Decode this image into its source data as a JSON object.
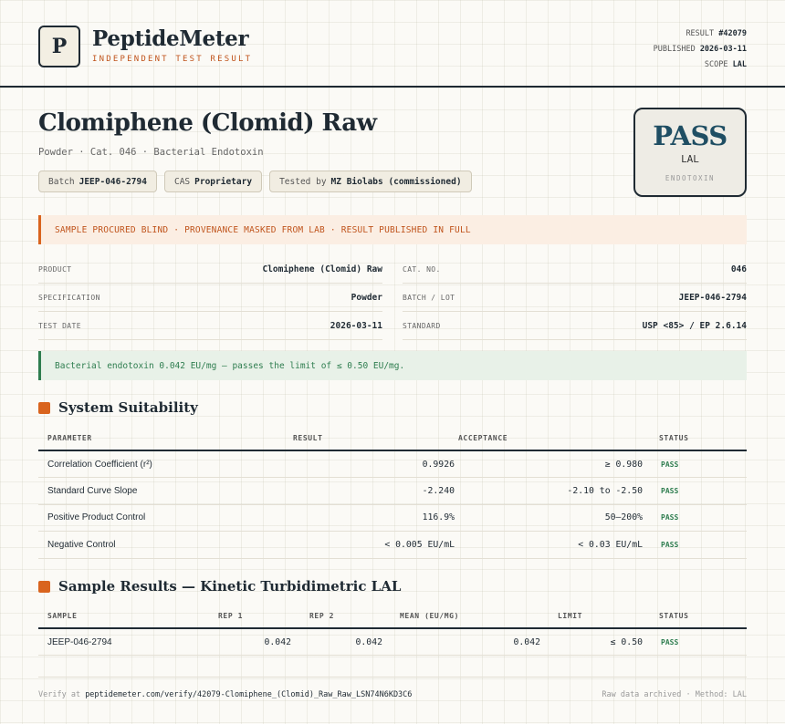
{
  "header": {
    "logo_letter": "P",
    "brand": "PeptideMeter",
    "tagline": "INDEPENDENT TEST RESULT",
    "meta": [
      {
        "label": "RESULT",
        "value": "#42079"
      },
      {
        "label": "PUBLISHED",
        "value": "2026-03-11"
      },
      {
        "label": "SCOPE",
        "value": "LAL"
      }
    ]
  },
  "product": {
    "title": "Clomiphene (Clomid) Raw",
    "subtitle": "Powder · Cat. 046 · Bacterial Endotoxin",
    "chips": [
      {
        "label": "Batch",
        "value": "JEEP-046-2794"
      },
      {
        "label": "CAS",
        "value": "Proprietary"
      },
      {
        "label": "Tested by",
        "value": "MZ Biolabs (commissioned)"
      }
    ]
  },
  "verdict": {
    "word": "PASS",
    "method": "LAL",
    "category": "ENDOTOXIN"
  },
  "banner_warn": "SAMPLE PROCURED BLIND · PROVENANCE MASKED FROM LAB · RESULT PUBLISHED IN FULL",
  "info": [
    [
      {
        "label": "PRODUCT",
        "value": "Clomiphene (Clomid) Raw"
      },
      {
        "label": "CAT. NO.",
        "value": "046"
      }
    ],
    [
      {
        "label": "SPECIFICATION",
        "value": "Powder"
      },
      {
        "label": "BATCH / LOT",
        "value": "JEEP-046-2794"
      }
    ],
    [
      {
        "label": "TEST DATE",
        "value": "2026-03-11"
      },
      {
        "label": "STANDARD",
        "value": "USP <85> / EP 2.6.14"
      }
    ]
  ],
  "banner_ok": "Bacterial endotoxin 0.042 EU/mg — passes the limit of ≤ 0.50 EU/mg.",
  "suitability": {
    "title": "System Suitability",
    "headers": [
      "PARAMETER",
      "RESULT",
      "ACCEPTANCE",
      "STATUS"
    ],
    "rows": [
      {
        "param": "Correlation Coefficient (r²)",
        "result": "0.9926",
        "acceptance": "≥ 0.980",
        "status": "PASS"
      },
      {
        "param": "Standard Curve Slope",
        "result": "-2.240",
        "acceptance": "-2.10 to -2.50",
        "status": "PASS"
      },
      {
        "param": "Positive Product Control",
        "result": "116.9%",
        "acceptance": "50–200%",
        "status": "PASS"
      },
      {
        "param": "Negative Control",
        "result": "< 0.005 EU/mL",
        "acceptance": "< 0.03 EU/mL",
        "status": "PASS"
      }
    ]
  },
  "samples": {
    "title": "Sample Results — Kinetic Turbidimetric LAL",
    "headers": [
      "SAMPLE",
      "REP 1",
      "REP 2",
      "MEAN (EU/MG)",
      "LIMIT",
      "STATUS"
    ],
    "rows": [
      {
        "sample": "JEEP-046-2794",
        "rep1": "0.042",
        "rep2": "0.042",
        "mean": "0.042",
        "limit": "≤ 0.50",
        "status": "PASS"
      }
    ]
  },
  "footer": {
    "verify_prefix": "Verify at",
    "verify_url": "peptidemeter.com/verify/42079-Clomiphene_(Clomid)_Raw_Raw_LSN74N6KD3C6",
    "right": "Raw data archived · Method: LAL"
  },
  "colors": {
    "accent": "#d9641e",
    "pass": "#2e7d4f",
    "ink": "#1f2a33",
    "verdict": "#1f4e63"
  }
}
